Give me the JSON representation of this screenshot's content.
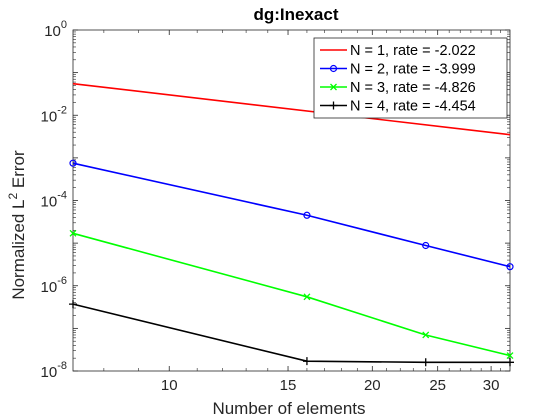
{
  "chart_data": {
    "type": "line",
    "title": "dg:Inexact",
    "xlabel": "Number of elements",
    "ylabel_main": "Normalized L",
    "ylabel_sup": "2",
    "ylabel_tail": " Error",
    "xscale": "log",
    "yscale": "log",
    "xlim": [
      7.2,
      32.0
    ],
    "ylim": [
      1e-08,
      1
    ],
    "xticks": [
      10,
      15,
      20,
      25,
      30
    ],
    "yticks": [
      {
        "value": 1,
        "base": "10",
        "exp": "0"
      },
      {
        "value": 0.01,
        "base": "10",
        "exp": "-2"
      },
      {
        "value": 0.0001,
        "base": "10",
        "exp": "-4"
      },
      {
        "value": 1e-06,
        "base": "10",
        "exp": "-6"
      },
      {
        "value": 1e-08,
        "base": "10",
        "exp": "-8"
      }
    ],
    "grid": false,
    "legend_position": "top-right",
    "series": [
      {
        "name": "N = 1, rate = -2.022",
        "color": "#ff0000",
        "marker": "none",
        "x": [
          7.2,
          32.0
        ],
        "y": [
          0.055,
          0.0035
        ]
      },
      {
        "name": "N = 2, rate = -3.999",
        "color": "#0000ff",
        "marker": "circle",
        "x": [
          7.2,
          16,
          24,
          32.0
        ],
        "y": [
          0.00075,
          4.5e-05,
          8.8e-06,
          2.8e-06
        ]
      },
      {
        "name": "N = 3, rate = -4.826",
        "color": "#00ff00",
        "marker": "x",
        "x": [
          7.2,
          16,
          24,
          32.0
        ],
        "y": [
          1.7e-05,
          5.5e-07,
          7e-08,
          2.3e-08
        ]
      },
      {
        "name": "N = 4, rate = -4.454",
        "color": "#000000",
        "marker": "plus",
        "x": [
          7.2,
          16,
          24,
          32.0
        ],
        "y": [
          3.7e-07,
          1.7e-08,
          1.6e-08,
          1.6e-08
        ]
      }
    ]
  }
}
